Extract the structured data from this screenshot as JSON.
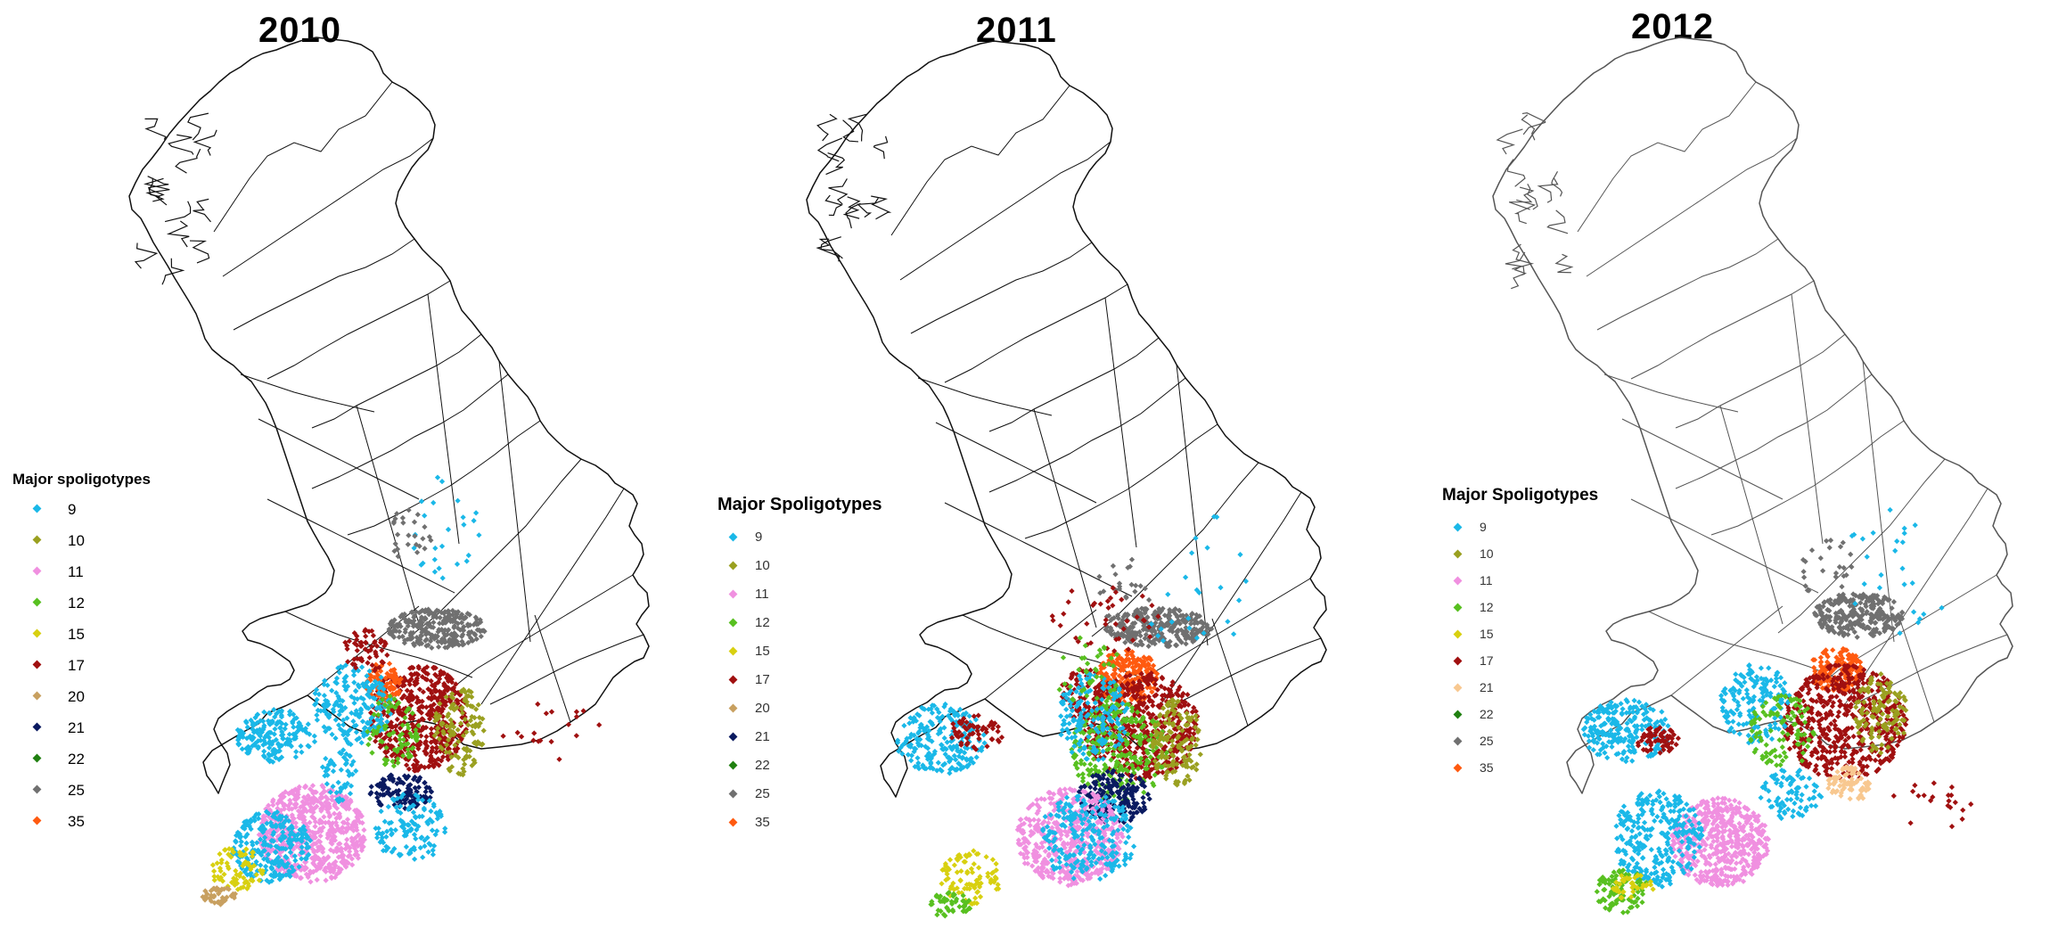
{
  "panels": [
    {
      "id": "2010",
      "title": "2010",
      "legend_title": "Major spoligotypes",
      "legend": [
        {
          "label": "9",
          "color": "#1ab8e8"
        },
        {
          "label": "10",
          "color": "#9aa020"
        },
        {
          "label": "11",
          "color": "#f090e0"
        },
        {
          "label": "12",
          "color": "#58c020"
        },
        {
          "label": "15",
          "color": "#d8d010"
        },
        {
          "label": "17",
          "color": "#a01010"
        },
        {
          "label": "20",
          "color": "#c8a060"
        },
        {
          "label": "21",
          "color": "#0a1a60"
        },
        {
          "label": "22",
          "color": "#208010"
        },
        {
          "label": "25",
          "color": "#707070"
        },
        {
          "label": "35",
          "color": "#ff5a10"
        }
      ]
    },
    {
      "id": "2011",
      "title": "2011",
      "legend_title": "Major Spoligotypes",
      "legend": [
        {
          "label": "9",
          "color": "#1ab8e8"
        },
        {
          "label": "10",
          "color": "#9aa020"
        },
        {
          "label": "11",
          "color": "#f090e0"
        },
        {
          "label": "12",
          "color": "#58c020"
        },
        {
          "label": "15",
          "color": "#d8d010"
        },
        {
          "label": "17",
          "color": "#a01010"
        },
        {
          "label": "20",
          "color": "#c8a060"
        },
        {
          "label": "21",
          "color": "#0a1a60"
        },
        {
          "label": "22",
          "color": "#208010"
        },
        {
          "label": "25",
          "color": "#707070"
        },
        {
          "label": "35",
          "color": "#ff5a10"
        }
      ]
    },
    {
      "id": "2012",
      "title": "2012",
      "legend_title": "Major Spoligotypes",
      "legend": [
        {
          "label": "9",
          "color": "#1ab8e8"
        },
        {
          "label": "10",
          "color": "#9aa020"
        },
        {
          "label": "11",
          "color": "#f090e0"
        },
        {
          "label": "12",
          "color": "#58c020"
        },
        {
          "label": "15",
          "color": "#d8d010"
        },
        {
          "label": "17",
          "color": "#a01010"
        },
        {
          "label": "21",
          "color": "#f8c890"
        },
        {
          "label": "22",
          "color": "#208010"
        },
        {
          "label": "25",
          "color": "#707070"
        },
        {
          "label": "35",
          "color": "#ff5a10"
        }
      ]
    }
  ]
}
